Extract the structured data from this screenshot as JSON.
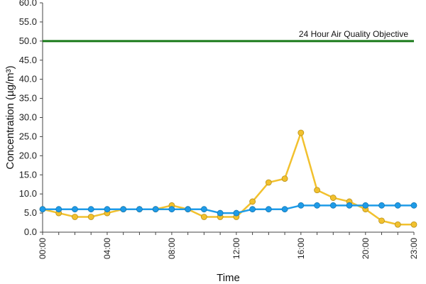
{
  "chart_data": {
    "type": "line",
    "title": "",
    "xlabel": "Time",
    "ylabel": "Concentration (µg/m³)",
    "x": [
      "00:00",
      "01:00",
      "02:00",
      "03:00",
      "04:00",
      "05:00",
      "06:00",
      "07:00",
      "08:00",
      "09:00",
      "10:00",
      "11:00",
      "12:00",
      "13:00",
      "14:00",
      "15:00",
      "16:00",
      "17:00",
      "18:00",
      "19:00",
      "20:00",
      "21:00",
      "22:00",
      "23:00"
    ],
    "x_tick_labels": [
      "00:00",
      "04:00",
      "08:00",
      "12:00",
      "16:00",
      "20:00",
      "23:00"
    ],
    "y_tick_labels": [
      "0.0",
      "5.0",
      "10.0",
      "15.0",
      "20.0",
      "25.0",
      "30.0",
      "35.0",
      "40.0",
      "45.0",
      "50.0",
      "55.0",
      "60.0"
    ],
    "ylim": [
      0,
      60
    ],
    "grid": false,
    "legend": "none",
    "series": [
      {
        "color": "#f2c12e",
        "values": [
          6,
          5,
          4,
          4,
          5,
          6,
          6,
          6,
          7,
          6,
          4,
          4,
          4,
          8,
          13,
          14,
          26,
          11,
          9,
          8,
          6,
          3,
          2,
          2
        ]
      },
      {
        "color": "#1e9be8",
        "values": [
          6,
          6,
          6,
          6,
          6,
          6,
          6,
          6,
          6,
          6,
          6,
          5,
          5,
          6,
          6,
          6,
          7,
          7,
          7,
          7,
          7,
          7,
          7,
          7
        ]
      }
    ],
    "reference_line": {
      "label": "24 Hour Air Quality Objective",
      "value": 50,
      "color": "#1a7a1a"
    }
  }
}
